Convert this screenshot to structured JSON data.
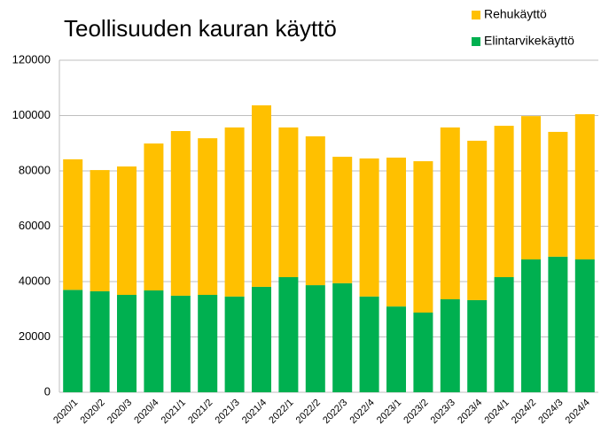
{
  "chart_data": {
    "type": "stacked_bar",
    "title": "Teollisuuden kauran käyttö",
    "categories": [
      "2020/1",
      "2020/2",
      "2020/3",
      "2020/4",
      "2021/1",
      "2021/2",
      "2021/3",
      "2021/4",
      "2022/1",
      "2022/2",
      "2022/3",
      "2022/4",
      "2023/1",
      "2023/2",
      "2023/3",
      "2023/4",
      "2024/1",
      "2024/2",
      "2024/3",
      "2024/4"
    ],
    "series": [
      {
        "name": "Elintarvikekäyttö",
        "color": "#00b050",
        "values": [
          37000,
          36500,
          35200,
          36800,
          34900,
          35200,
          34600,
          38100,
          41600,
          38700,
          39400,
          34600,
          31000,
          28800,
          33600,
          33300,
          41600,
          48000,
          49000,
          48000
        ]
      },
      {
        "name": "Rehukäyttö",
        "color": "#ffc000",
        "values": [
          47200,
          43800,
          46400,
          53100,
          59500,
          56600,
          61100,
          65600,
          54100,
          53800,
          45700,
          49900,
          53800,
          54700,
          62100,
          57600,
          54700,
          51800,
          45100,
          52500
        ]
      }
    ],
    "ylim": [
      0,
      120000
    ],
    "yticks": [
      0,
      20000,
      40000,
      60000,
      80000,
      100000,
      120000
    ],
    "grid": true,
    "legend": "top-right"
  }
}
